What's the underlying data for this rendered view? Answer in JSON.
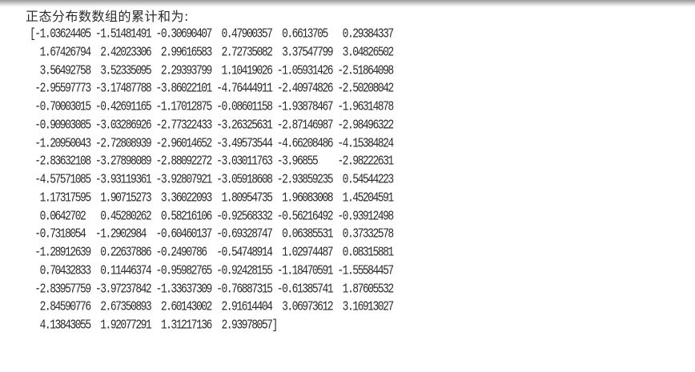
{
  "console": {
    "title": "正态分布数数组的累计和为:",
    "rows": [
      [
        -1.03624405,
        -1.51481491,
        -0.30690407,
        0.47900357,
        0.6613705,
        0.29384337
      ],
      [
        1.67426794,
        2.42023306,
        2.99616583,
        2.72735082,
        3.37547799,
        3.04826502
      ],
      [
        3.56492758,
        3.52335095,
        2.29393799,
        1.10419026,
        -1.05931426,
        -2.51864098
      ],
      [
        -2.95597773,
        -3.17487788,
        -3.86022101,
        -4.76444911,
        -2.40974826,
        -2.50208042
      ],
      [
        -0.70003015,
        -0.42691165,
        -1.17012875,
        -0.08601158,
        -1.93878467,
        -1.96314878
      ],
      [
        -0.90903085,
        -3.03286926,
        -2.77322433,
        -3.26325631,
        -2.87146987,
        -2.98496322
      ],
      [
        -1.20950043,
        -2.72808939,
        -2.96014652,
        -3.49573544,
        -4.66208486,
        -4.15384824
      ],
      [
        -2.83632108,
        -3.27898089,
        -2.88092272,
        -3.03011763,
        -3.96855,
        -2.98222631
      ],
      [
        -4.57571085,
        -3.93119361,
        -3.92807921,
        -3.05918608,
        -2.93859235,
        0.54544223
      ],
      [
        1.17317595,
        1.90715273,
        3.36022093,
        1.80954735,
        1.96083008,
        1.45204591
      ],
      [
        0.0642702,
        0.45280262,
        0.58216106,
        -0.92568332,
        -0.56216492,
        -0.93912498
      ],
      [
        -0.7318054,
        -1.2902984,
        -0.60460137,
        -0.69328747,
        0.06385531,
        0.37332578
      ],
      [
        -1.28912639,
        0.22637886,
        -0.2490786,
        -0.54748914,
        1.02974487,
        0.08315881
      ],
      [
        0.70432833,
        0.11446374,
        -0.95982765,
        -0.92428155,
        -1.18470591,
        -1.55584457
      ],
      [
        -2.83957759,
        -3.97237842,
        -1.33637309,
        -0.76887315,
        -0.61385741,
        1.87605532
      ],
      [
        2.84590776,
        2.67350893,
        2.60143002,
        2.91614404,
        3.06973612,
        3.16913027
      ],
      [
        4.13843055,
        1.92077291,
        1.31217136,
        2.93978057
      ]
    ]
  }
}
